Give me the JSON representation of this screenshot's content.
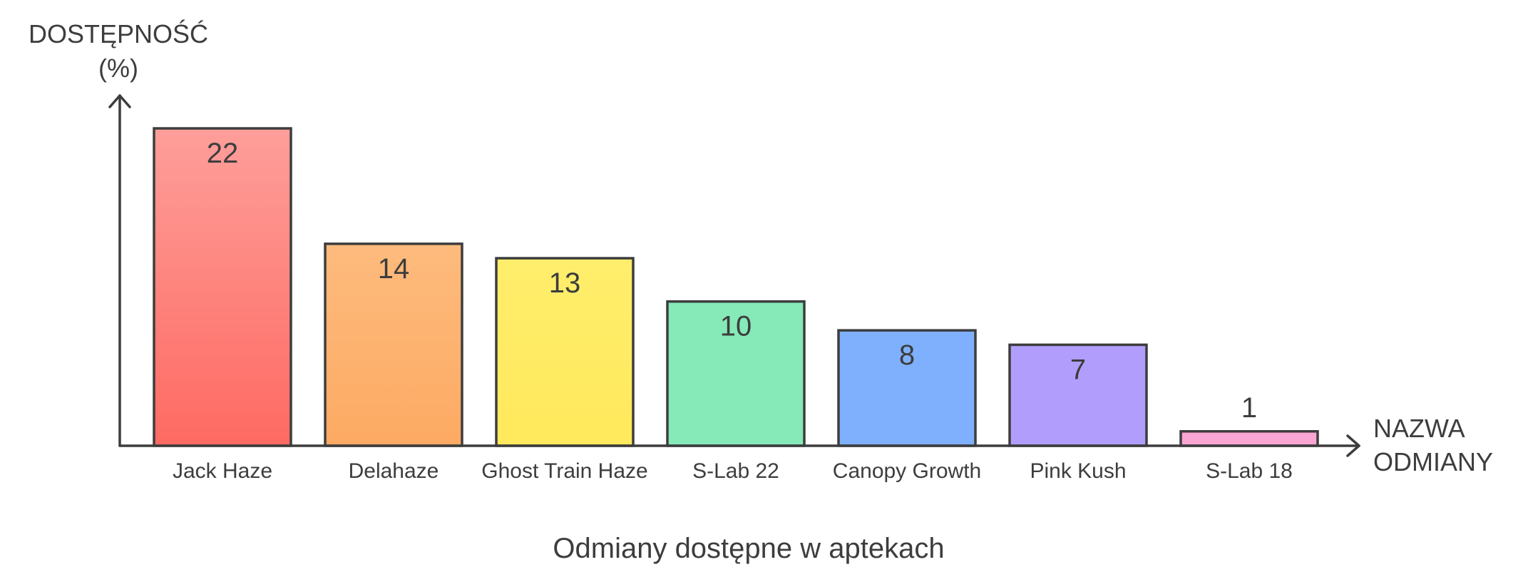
{
  "chart_data": {
    "type": "bar",
    "title": "Odmiany dostępne w aptekach",
    "ylabel_lines": [
      "DOSTĘPNOŚĆ",
      "(%)"
    ],
    "xlabel_lines": [
      "NAZWA",
      "ODMIANY"
    ],
    "ylim": [
      0,
      24
    ],
    "grid": false,
    "legend": "none",
    "categories": [
      "Jack Haze",
      "Delahaze",
      "Ghost Train Haze",
      "S-Lab 22",
      "Canopy Growth",
      "Pink Kush",
      "S-Lab 18"
    ],
    "values": [
      22,
      14,
      13,
      10,
      8,
      7,
      1
    ],
    "colors": [
      [
        "#fe9e9a",
        "#fe6a62"
      ],
      [
        "#fdbb7d",
        "#fdaa63"
      ],
      [
        "#ffee6c",
        "#ffe95c"
      ],
      [
        "#85eab8",
        "#85eab8"
      ],
      [
        "#7fb0fe",
        "#7fb0fe"
      ],
      [
        "#b19efc",
        "#b19efc"
      ],
      [
        "#fba5d3",
        "#fba5d3"
      ]
    ],
    "axis_color": "#3d3d3d"
  }
}
